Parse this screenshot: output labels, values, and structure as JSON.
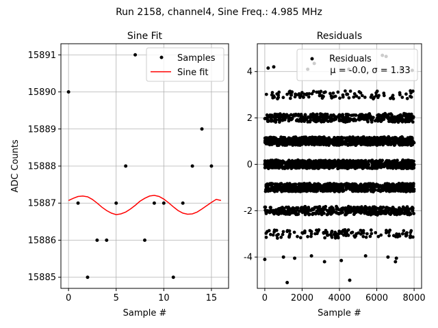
{
  "suptitle": "Run 2158, channel4, Sine Freq.: 4.985 MHz",
  "chart_data": [
    {
      "type": "scatter",
      "title": "Sine Fit",
      "xlabel": "Sample #",
      "ylabel": "ADC Counts",
      "xlim": [
        -0.8,
        16.8
      ],
      "ylim": [
        15884.7,
        15891.3
      ],
      "xticks": [
        0,
        5,
        10,
        15
      ],
      "yticks": [
        15885,
        15886,
        15887,
        15888,
        15889,
        15890,
        15891
      ],
      "grid": true,
      "legend_position": "top-right",
      "series": [
        {
          "name": "Samples",
          "kind": "points",
          "color": "#000000",
          "x": [
            0,
            1,
            2,
            3,
            4,
            5,
            6,
            7,
            8,
            9,
            10,
            11,
            12,
            13,
            14,
            15
          ],
          "y": [
            15890,
            15887,
            15885,
            15886,
            15886,
            15887,
            15888,
            15891,
            15886,
            15887,
            15887,
            15885,
            15887,
            15888,
            15889,
            15888
          ]
        },
        {
          "name": "Sine fit",
          "kind": "line",
          "color": "#ff0000",
          "x": [
            0,
            0.5,
            1,
            1.5,
            2,
            2.5,
            3,
            3.5,
            4,
            4.5,
            5,
            5.5,
            6,
            6.5,
            7,
            7.5,
            8,
            8.5,
            9,
            9.5,
            10,
            10.5,
            11,
            11.5,
            12,
            12.5,
            13,
            13.5,
            14,
            14.5,
            15,
            15.5,
            16
          ],
          "y": [
            15887.07,
            15887.13,
            15887.18,
            15887.19,
            15887.17,
            15887.1,
            15887.0,
            15886.89,
            15886.8,
            15886.73,
            15886.69,
            15886.71,
            15886.76,
            15886.84,
            15886.94,
            15887.05,
            15887.13,
            15887.19,
            15887.21,
            15887.18,
            15887.11,
            15887.01,
            15886.9,
            15886.8,
            15886.73,
            15886.7,
            15886.71,
            15886.76,
            15886.84,
            15886.93,
            15887.02,
            15887.1,
            15887.07
          ]
        }
      ]
    },
    {
      "type": "scatter",
      "title": "Residuals",
      "xlabel": "Sample #",
      "ylabel": "",
      "xlim": [
        -400,
        8400
      ],
      "ylim": [
        -5.35,
        5.2
      ],
      "xticks": [
        0,
        2000,
        4000,
        6000,
        8000
      ],
      "yticks": [
        -4,
        -2,
        0,
        2,
        4
      ],
      "grid": true,
      "legend_position": "top-right",
      "legend_label": "Residuals",
      "legend_stats": "μ = -0.0, σ = 1.33",
      "series": [
        {
          "name": "Residuals",
          "color": "#000000",
          "n_samples": 8000,
          "levels": [
            -3,
            -2,
            -1,
            0,
            1,
            2,
            3
          ],
          "band_fraction": [
            0.03,
            0.12,
            0.22,
            0.26,
            0.22,
            0.12,
            0.03
          ],
          "outliers": {
            "x": [
              0,
              180,
              480,
              1000,
              1200,
              1600,
              2300,
              2500,
              2650,
              3200,
              4100,
              4500,
              4550,
              5400,
              6300,
              6500,
              6600,
              7000,
              7050,
              7300,
              7900
            ],
            "y": [
              -4.1,
              4.15,
              4.2,
              -4.0,
              -5.1,
              -4.05,
              4.1,
              -3.95,
              4.35,
              -4.2,
              -4.15,
              4.1,
              -5.0,
              -3.95,
              4.7,
              4.65,
              -4.0,
              -4.2,
              -4.05,
              4.1,
              4.05
            ]
          }
        }
      ]
    }
  ]
}
